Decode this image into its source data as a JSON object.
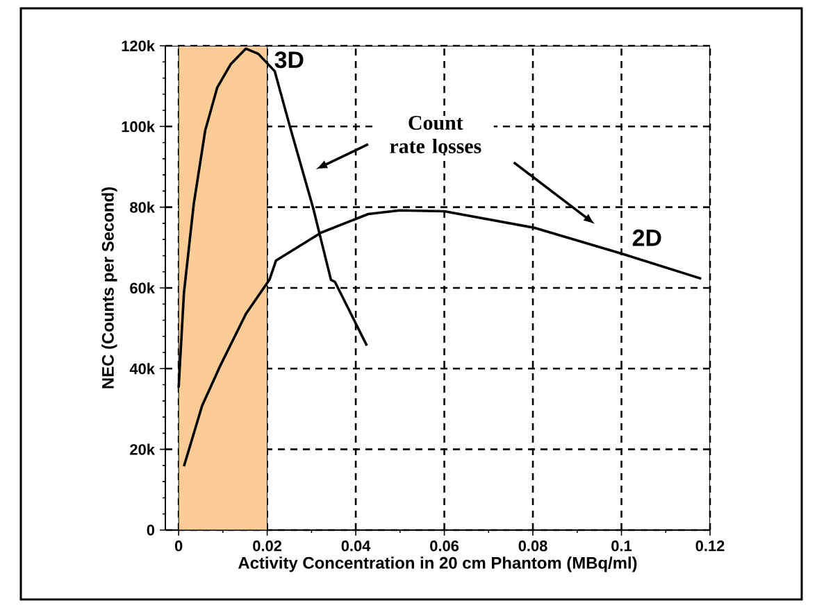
{
  "chart_data": {
    "type": "line",
    "xlabel": "Activity Concentration in 20 cm Phantom (MBq/ml)",
    "ylabel": "NEC (Counts per Second)",
    "xlim": [
      -0.003,
      0.12
    ],
    "ylim": [
      0,
      120000
    ],
    "xticks": [
      0,
      0.02,
      0.04,
      0.06,
      0.08,
      0.1,
      0.12
    ],
    "yticks": [
      {
        "value": 0,
        "label": "0"
      },
      {
        "value": 20000,
        "label": "20k"
      },
      {
        "value": 40000,
        "label": "40k"
      },
      {
        "value": 60000,
        "label": "60k"
      },
      {
        "value": 80000,
        "label": "80k"
      },
      {
        "value": 100000,
        "label": "100k"
      },
      {
        "value": 120000,
        "label": "120k"
      }
    ],
    "grid": true,
    "bands": [
      {
        "axis": "x",
        "from": 0,
        "to": 0.02,
        "color": "#fccc96"
      }
    ],
    "annotations": [
      "Count rate losses"
    ],
    "series": [
      {
        "name": "3D",
        "color": "#000000",
        "x": [
          0.0,
          0.0012,
          0.0034,
          0.006,
          0.0087,
          0.0118,
          0.0152,
          0.018,
          0.0217,
          0.025,
          0.0304,
          0.0344,
          0.0353,
          0.0425
        ],
        "values": [
          35300,
          58800,
          80700,
          99000,
          109600,
          115500,
          119300,
          118000,
          113700,
          100500,
          79700,
          62000,
          61500,
          45700
        ]
      },
      {
        "name": "2D",
        "color": "#000000",
        "x": [
          0.0012,
          0.0053,
          0.0093,
          0.0152,
          0.0205,
          0.022,
          0.0322,
          0.0428,
          0.0499,
          0.06,
          0.0803,
          0.1,
          0.118
        ],
        "values": [
          15800,
          30800,
          40500,
          53600,
          62000,
          66800,
          73700,
          78300,
          79200,
          79000,
          74900,
          68500,
          62300
        ]
      }
    ]
  }
}
